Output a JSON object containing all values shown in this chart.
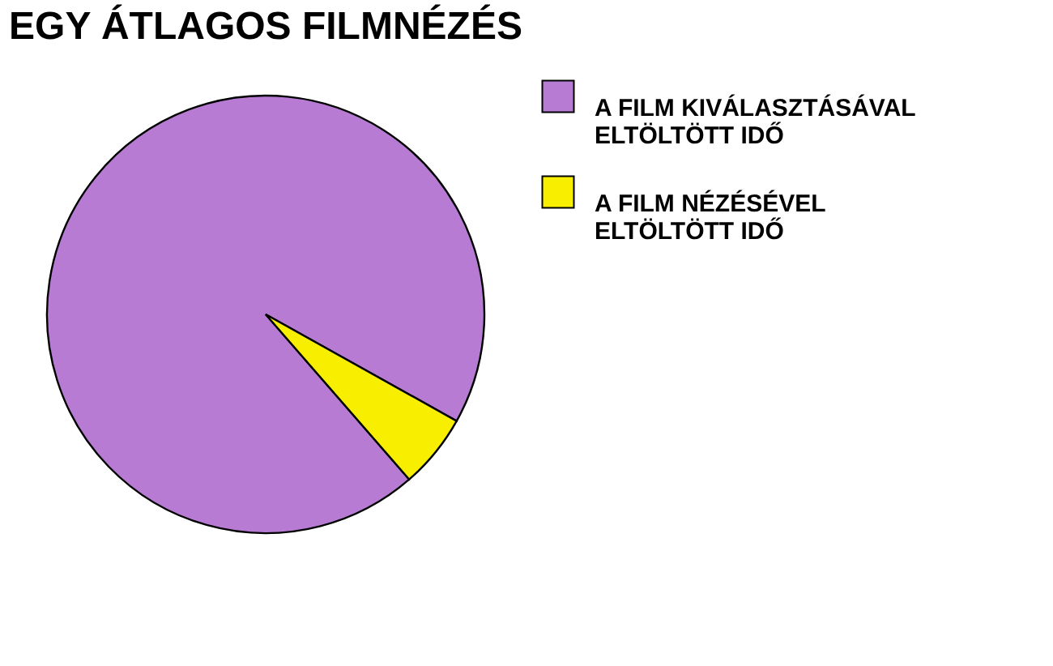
{
  "chart_data": {
    "type": "pie",
    "title": "EGY ÁTLAGOS FILMNÉZÉS",
    "categories": [
      "A FILM KIVÁLASZTÁSÁVAL\nELTÖLTÖTT IDŐ",
      "A FILM NÉZÉSÉVEL\nELTÖLTÖTT IDŐ"
    ],
    "values": [
      94.5,
      5.5
    ],
    "colors": [
      "#b77bd4",
      "#f7ee00"
    ],
    "legend": "right"
  }
}
